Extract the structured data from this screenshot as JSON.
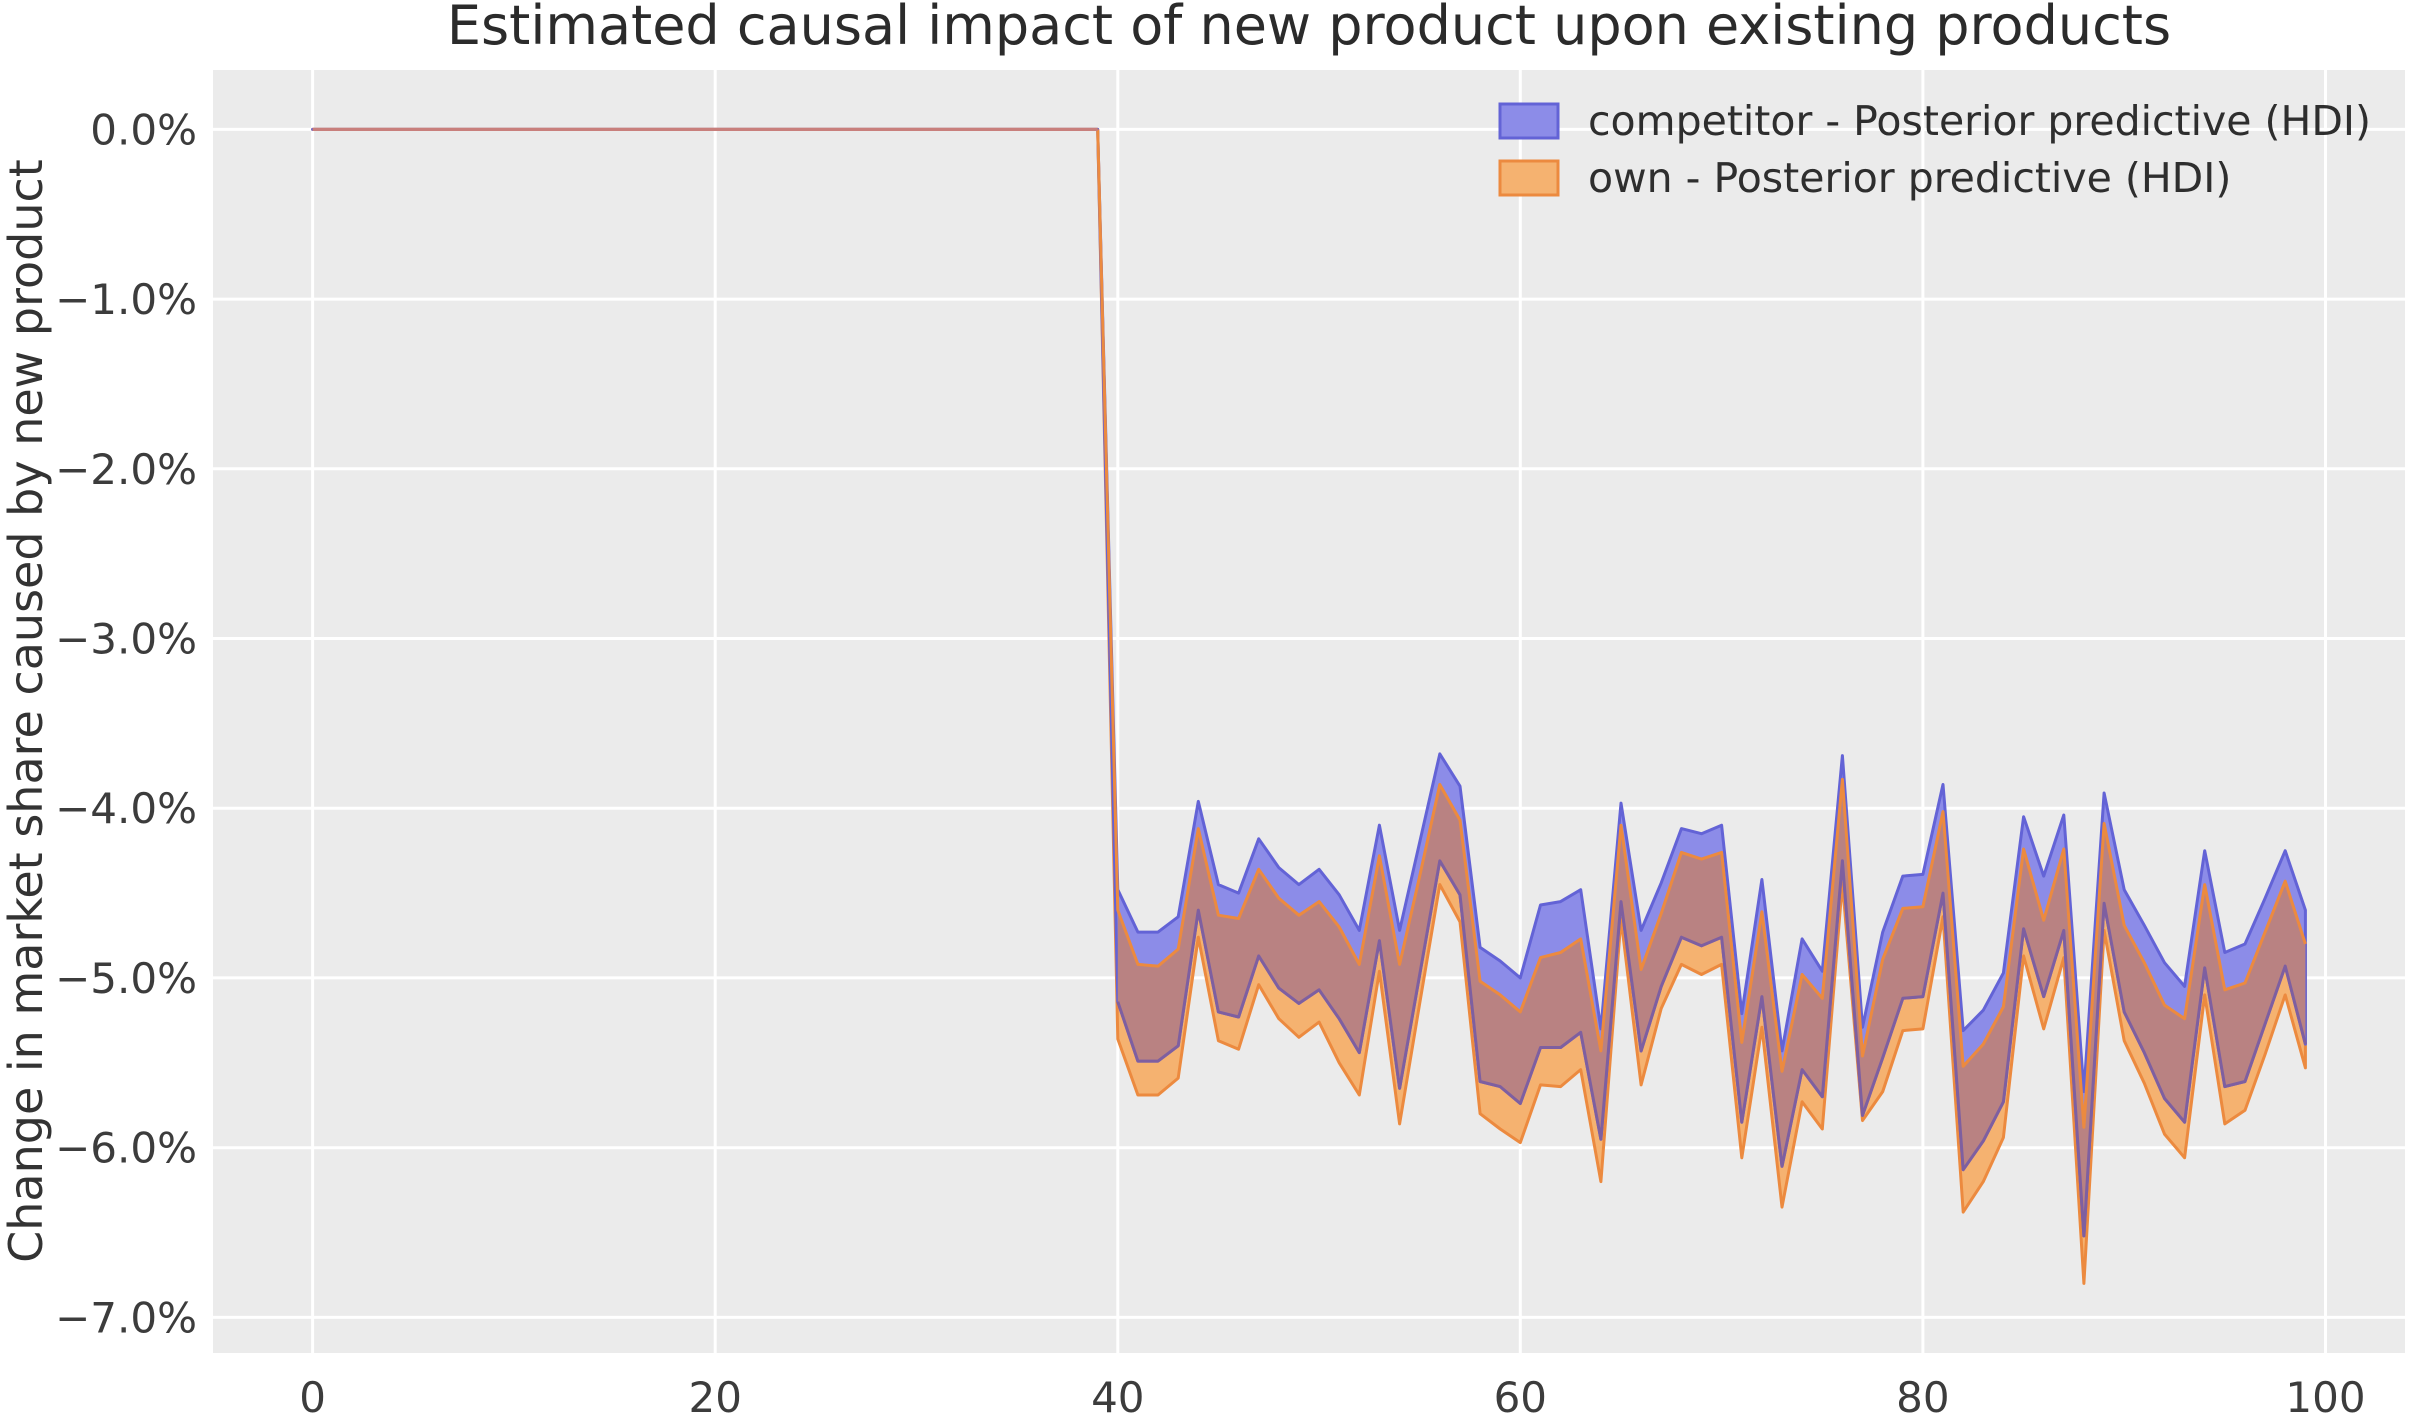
{
  "chart_data": {
    "type": "area",
    "title": "Estimated causal impact of new product upon existing products",
    "ylabel": "Change in market share caused by new product",
    "xlabel": "",
    "grid": true,
    "legend_position": "upper right",
    "plot_bg": "#ebebeb",
    "grid_color": "#ffffff",
    "text_color": "#3c3c3c",
    "pre_line_color": "#c87f7c",
    "overlap_fill": "#b98282",
    "overlap_lower_edge": "#7e5fa0",
    "xlim": [
      -4.95,
      103.95
    ],
    "ylim_pct": [
      0.35,
      -7.21
    ],
    "x_ticks": [
      0,
      20,
      40,
      60,
      80,
      100
    ],
    "x_tick_labels": [
      "0",
      "20",
      "40",
      "60",
      "80",
      "100"
    ],
    "y_tick_values": [
      0,
      -1,
      -2,
      -3,
      -4,
      -5,
      -6,
      -7
    ],
    "y_tick_labels": [
      "0.0%",
      "−1.0%",
      "−2.0%",
      "−3.0%",
      "−4.0%",
      "−5.0%",
      "−6.0%",
      "−7.0%"
    ],
    "pre_period": {
      "x_start": 0,
      "x_end": 39,
      "value_pct": 0.0
    },
    "post_x_start": 40,
    "series": [
      {
        "name": "competitor - Posterior predictive (HDI)",
        "fill": "#8c8ce8",
        "edge": "#6363d6",
        "hi": [
          -4.48,
          -4.73,
          -4.73,
          -4.64,
          -3.96,
          -4.45,
          -4.5,
          -4.18,
          -4.35,
          -4.45,
          -4.36,
          -4.51,
          -4.72,
          -4.1,
          -4.72,
          -4.2,
          -3.68,
          -3.87,
          -4.82,
          -4.9,
          -5.0,
          -4.57,
          -4.55,
          -4.48,
          -5.3,
          -3.97,
          -4.72,
          -4.44,
          -4.12,
          -4.15,
          -4.1,
          -5.21,
          -4.42,
          -5.43,
          -4.77,
          -4.96,
          -3.69,
          -5.29,
          -4.73,
          -4.4,
          -4.39,
          -3.86,
          -5.31,
          -5.19,
          -4.97,
          -4.05,
          -4.4,
          -4.04,
          -5.67,
          -3.91,
          -4.48,
          -4.69,
          -4.91,
          -5.05,
          -4.25,
          -4.85,
          -4.8,
          -4.53,
          -4.25,
          -4.6
        ],
        "lo": [
          -5.14,
          -5.49,
          -5.49,
          -5.4,
          -4.6,
          -5.2,
          -5.23,
          -4.87,
          -5.06,
          -5.15,
          -5.07,
          -5.24,
          -5.44,
          -4.78,
          -5.65,
          -4.98,
          -4.31,
          -4.51,
          -5.61,
          -5.64,
          -5.74,
          -5.41,
          -5.41,
          -5.32,
          -5.95,
          -4.55,
          -5.43,
          -5.05,
          -4.76,
          -4.81,
          -4.76,
          -5.85,
          -5.11,
          -6.11,
          -5.54,
          -5.7,
          -4.31,
          -5.81,
          -5.47,
          -5.12,
          -5.11,
          -4.5,
          -6.13,
          -5.96,
          -5.73,
          -4.71,
          -5.11,
          -4.72,
          -6.52,
          -4.56,
          -5.2,
          -5.44,
          -5.71,
          -5.85,
          -4.94,
          -5.64,
          -5.61,
          -5.27,
          -4.93,
          -5.39
        ]
      },
      {
        "name": "own - Posterior predictive (HDI)",
        "fill": "#f5b270",
        "edge": "#ec8a3f",
        "hi": [
          -4.6,
          -4.92,
          -4.93,
          -4.83,
          -4.12,
          -4.63,
          -4.65,
          -4.36,
          -4.53,
          -4.63,
          -4.55,
          -4.7,
          -4.92,
          -4.28,
          -4.92,
          -4.4,
          -3.86,
          -4.07,
          -5.02,
          -5.1,
          -5.2,
          -4.88,
          -4.85,
          -4.77,
          -5.43,
          -4.1,
          -4.95,
          -4.62,
          -4.26,
          -4.3,
          -4.26,
          -5.38,
          -4.61,
          -5.55,
          -4.98,
          -5.12,
          -3.83,
          -5.46,
          -4.89,
          -4.59,
          -4.58,
          -4.02,
          -5.52,
          -5.39,
          -5.17,
          -4.24,
          -4.66,
          -4.24,
          -5.88,
          -4.09,
          -4.69,
          -4.91,
          -5.16,
          -5.24,
          -4.45,
          -5.07,
          -5.03,
          -4.73,
          -4.43,
          -4.8
        ],
        "lo": [
          -5.36,
          -5.69,
          -5.69,
          -5.59,
          -4.76,
          -5.37,
          -5.42,
          -5.04,
          -5.24,
          -5.35,
          -5.26,
          -5.5,
          -5.69,
          -4.96,
          -5.86,
          -5.15,
          -4.45,
          -4.67,
          -5.8,
          -5.89,
          -5.97,
          -5.63,
          -5.64,
          -5.54,
          -6.2,
          -4.65,
          -5.63,
          -5.18,
          -4.92,
          -4.98,
          -4.92,
          -6.06,
          -5.29,
          -6.35,
          -5.73,
          -5.89,
          -4.44,
          -5.84,
          -5.67,
          -5.31,
          -5.3,
          -4.64,
          -6.38,
          -6.2,
          -5.94,
          -4.87,
          -5.3,
          -4.88,
          -6.8,
          -4.72,
          -5.37,
          -5.62,
          -5.92,
          -6.06,
          -5.1,
          -5.86,
          -5.78,
          -5.45,
          -5.1,
          -5.53
        ]
      }
    ]
  }
}
